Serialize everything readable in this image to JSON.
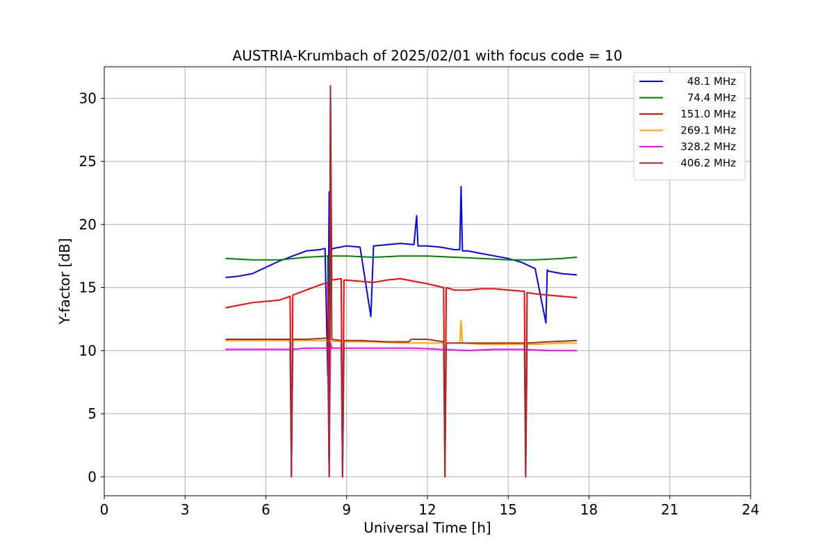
{
  "chart_data": {
    "type": "line",
    "title": "AUSTRIA-Krumbach of 2025/02/01 with focus code = 10",
    "xlabel": "Universal Time [h]",
    "ylabel": "Y-factor [dB]",
    "xlim": [
      0,
      24
    ],
    "ylim": [
      -1.5,
      32.5
    ],
    "xticks": [
      0,
      3,
      6,
      9,
      12,
      15,
      18,
      21,
      24
    ],
    "yticks": [
      0,
      5,
      10,
      15,
      20,
      25,
      30
    ],
    "grid": true,
    "legend_position": "top-right",
    "series": [
      {
        "name": " 48.1 MHz",
        "color": "#0000ff",
        "x": [
          4.5,
          5.0,
          5.5,
          6.0,
          6.5,
          7.0,
          7.5,
          8.0,
          8.2,
          8.3,
          8.35,
          8.4,
          8.45,
          8.5,
          9.0,
          9.5,
          9.9,
          10.0,
          10.5,
          11.0,
          11.5,
          11.6,
          11.65,
          11.7,
          12.0,
          12.5,
          13.0,
          13.2,
          13.25,
          13.3,
          13.5,
          14.0,
          14.5,
          15.0,
          15.5,
          16.0,
          16.4,
          16.45,
          16.5,
          17.0,
          17.55
        ],
        "y": [
          15.8,
          15.9,
          16.1,
          16.6,
          17.1,
          17.5,
          17.9,
          18.0,
          18.1,
          8.0,
          22.6,
          17.8,
          18.0,
          18.1,
          18.3,
          18.2,
          12.7,
          18.3,
          18.4,
          18.5,
          18.4,
          20.7,
          18.3,
          18.3,
          18.3,
          18.2,
          18.0,
          18.0,
          23.0,
          17.9,
          17.9,
          17.7,
          17.5,
          17.3,
          17.0,
          16.5,
          12.2,
          16.4,
          16.3,
          16.1,
          16.0
        ]
      },
      {
        "name": " 74.4 MHz",
        "color": "#008000",
        "x": [
          4.5,
          5.5,
          6.5,
          7.5,
          8.3,
          8.35,
          8.4,
          8.45,
          9.0,
          10.0,
          11.0,
          12.0,
          13.0,
          14.0,
          15.0,
          16.0,
          17.0,
          17.55
        ],
        "y": [
          17.3,
          17.2,
          17.2,
          17.4,
          17.5,
          0.0,
          17.5,
          17.5,
          17.5,
          17.4,
          17.5,
          17.5,
          17.4,
          17.3,
          17.2,
          17.2,
          17.3,
          17.4
        ]
      },
      {
        "name": " 151.0 MHz",
        "color": "#ff0000",
        "x": [
          4.5,
          5.0,
          5.5,
          6.0,
          6.5,
          6.9,
          6.95,
          7.0,
          7.5,
          8.0,
          8.3,
          8.35,
          8.4,
          8.45,
          8.8,
          8.85,
          8.9,
          9.5,
          10.0,
          10.5,
          11.0,
          11.5,
          12.0,
          12.6,
          12.65,
          12.7,
          13.0,
          13.5,
          14.0,
          14.5,
          15.0,
          15.6,
          15.65,
          15.7,
          16.0,
          16.5,
          17.0,
          17.55
        ],
        "y": [
          13.4,
          13.6,
          13.8,
          13.9,
          14.0,
          14.3,
          0.0,
          14.4,
          14.8,
          15.2,
          15.4,
          0.0,
          30.5,
          15.6,
          15.7,
          0.0,
          15.6,
          15.5,
          15.4,
          15.6,
          15.7,
          15.5,
          15.3,
          15.0,
          0.0,
          15.0,
          14.8,
          14.8,
          14.9,
          14.9,
          14.8,
          14.7,
          0.0,
          14.6,
          14.5,
          14.4,
          14.3,
          14.2
        ]
      },
      {
        "name": " 269.1 MHz",
        "color": "#ffa500",
        "x": [
          4.5,
          6.0,
          8.0,
          9.0,
          10.0,
          11.0,
          12.0,
          13.2,
          13.25,
          13.3,
          14.0,
          15.0,
          16.0,
          17.0,
          17.55
        ],
        "y": [
          10.8,
          10.8,
          10.8,
          10.7,
          10.7,
          10.6,
          10.6,
          10.6,
          12.4,
          10.6,
          10.5,
          10.5,
          10.5,
          10.6,
          10.6
        ]
      },
      {
        "name": " 328.2 MHz",
        "color": "#ff00ff",
        "x": [
          4.5,
          5.5,
          6.5,
          6.9,
          6.95,
          7.0,
          7.5,
          8.3,
          8.35,
          8.4,
          8.45,
          8.8,
          8.85,
          8.9,
          9.5,
          10.5,
          11.5,
          12.5,
          13.5,
          14.5,
          15.5,
          16.5,
          17.55
        ],
        "y": [
          10.1,
          10.1,
          10.1,
          10.1,
          1.0,
          10.1,
          10.2,
          10.2,
          0.5,
          10.6,
          10.2,
          10.2,
          0.1,
          10.2,
          10.2,
          10.2,
          10.2,
          10.1,
          10.0,
          10.1,
          10.1,
          10.0,
          10.0
        ]
      },
      {
        "name": " 406.2 MHz",
        "color": "#a52a2a",
        "x": [
          4.5,
          5.5,
          6.5,
          6.9,
          6.95,
          7.0,
          7.5,
          8.3,
          8.35,
          8.4,
          8.45,
          8.8,
          8.85,
          8.9,
          9.5,
          10.5,
          11.3,
          11.4,
          12.0,
          12.6,
          12.65,
          12.7,
          13.5,
          14.5,
          15.5,
          15.6,
          15.65,
          15.7,
          16.5,
          17.55
        ],
        "y": [
          10.9,
          10.9,
          10.9,
          10.9,
          0.0,
          10.9,
          10.9,
          11.0,
          0.0,
          31.0,
          10.9,
          10.8,
          0.0,
          10.8,
          10.8,
          10.7,
          10.7,
          10.9,
          10.9,
          10.7,
          0.0,
          10.6,
          10.6,
          10.6,
          10.6,
          10.6,
          0.0,
          10.6,
          10.7,
          10.8
        ]
      }
    ]
  }
}
